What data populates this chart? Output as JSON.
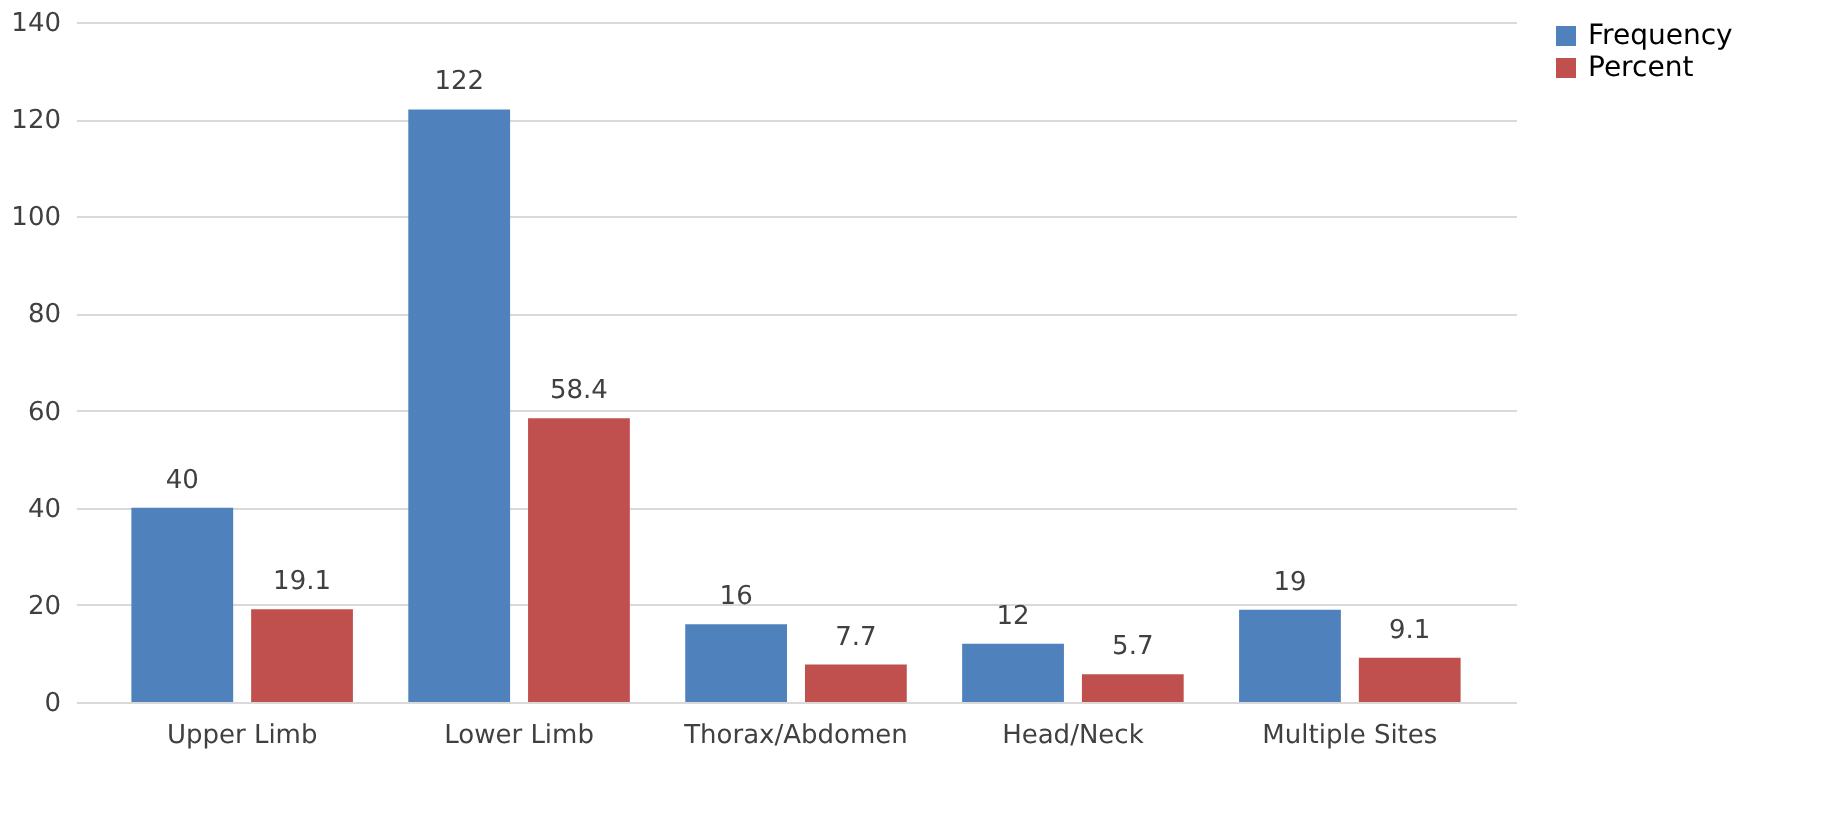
{
  "chart_data": {
    "type": "bar",
    "categories": [
      "Upper Limb",
      "Lower Limb",
      "Thorax/Abdomen",
      "Head/Neck",
      "Multiple Sites"
    ],
    "series": [
      {
        "name": "Frequency",
        "color": "#4f81bd",
        "values": [
          40,
          122,
          16,
          12,
          19
        ]
      },
      {
        "name": "Percent",
        "color": "#c0504d",
        "values": [
          19.1,
          58.4,
          7.7,
          5.7,
          9.1
        ]
      }
    ],
    "ylim": [
      0,
      140
    ],
    "yticks": [
      0,
      20,
      40,
      60,
      80,
      100,
      120,
      140
    ],
    "grid": "y",
    "legend": "right",
    "data_labels": true
  }
}
